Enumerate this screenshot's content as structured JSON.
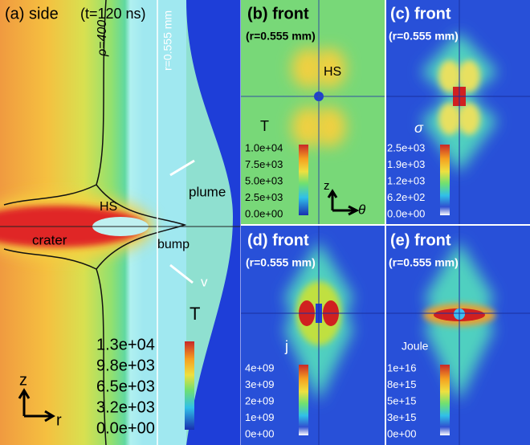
{
  "panels": [
    {
      "label": "(a) side",
      "subtitle": "(t=120 ns)",
      "annotations": [
        "ρ=400",
        "r=0.555 mm",
        "HS",
        "crater",
        "plume",
        "bump",
        "v",
        "T",
        "z",
        "r"
      ],
      "colorbar": [
        "1.3e+04",
        "9.8e+03",
        "6.5e+03",
        "3.2e+03",
        "0.0e+00"
      ]
    },
    {
      "label": "(b) front",
      "subtitle": "(r=0.555 mm)",
      "annotations": [
        "HS",
        "T",
        "z",
        "θ"
      ],
      "colorbar": [
        "1.0e+04",
        "7.5e+03",
        "5.0e+03",
        "2.5e+03",
        "0.0e+00"
      ]
    },
    {
      "label": "(c) front",
      "subtitle": "(r=0.555 mm)",
      "annotations": [
        "σ"
      ],
      "colorbar": [
        "2.5e+03",
        "1.9e+03",
        "1.2e+03",
        "6.2e+02",
        "0.0e+00"
      ]
    },
    {
      "label": "(d) front",
      "subtitle": "(r=0.555 mm)",
      "annotations": [
        "j"
      ],
      "colorbar": [
        "4e+09",
        "3e+09",
        "2e+09",
        "1e+09",
        "0e+00"
      ]
    },
    {
      "label": "(e) front",
      "subtitle": "(r=0.555 mm)",
      "annotations": [
        "Joule"
      ],
      "colorbar": [
        "1e+16",
        "8e+15",
        "5e+15",
        "3e+15",
        "0e+00"
      ]
    }
  ]
}
